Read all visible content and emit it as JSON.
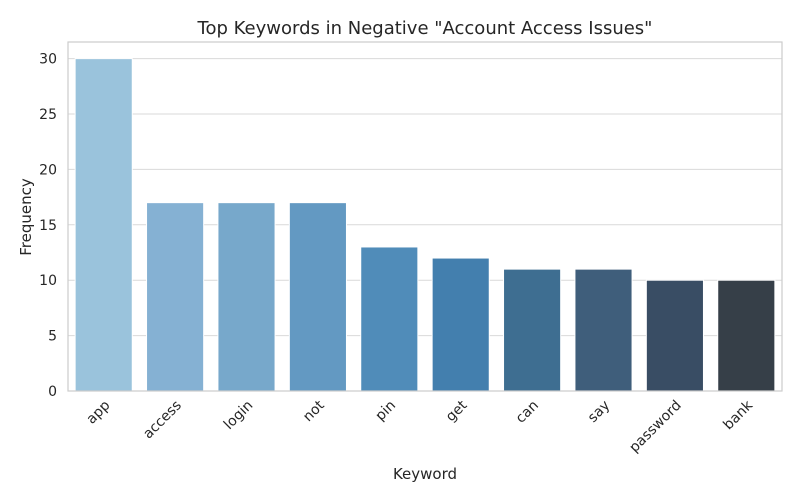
{
  "chart_data": {
    "type": "bar",
    "title": "Top Keywords in Negative \"Account Access Issues\"",
    "xlabel": "Keyword",
    "ylabel": "Frequency",
    "categories": [
      "app",
      "access",
      "login",
      "not",
      "pin",
      "get",
      "can",
      "say",
      "password",
      "bank"
    ],
    "values": [
      30,
      17,
      17,
      17,
      13,
      12,
      11,
      11,
      10,
      10
    ],
    "ylim": [
      0,
      31.5
    ],
    "yticks": [
      0,
      5,
      10,
      15,
      20,
      25,
      30
    ],
    "grid": true,
    "colors": [
      "#9ac3dc",
      "#85b1d3",
      "#77a8cb",
      "#6399c2",
      "#508cb9",
      "#437fae",
      "#3e6e91",
      "#3f5e7b",
      "#394d64",
      "#363f48"
    ]
  }
}
